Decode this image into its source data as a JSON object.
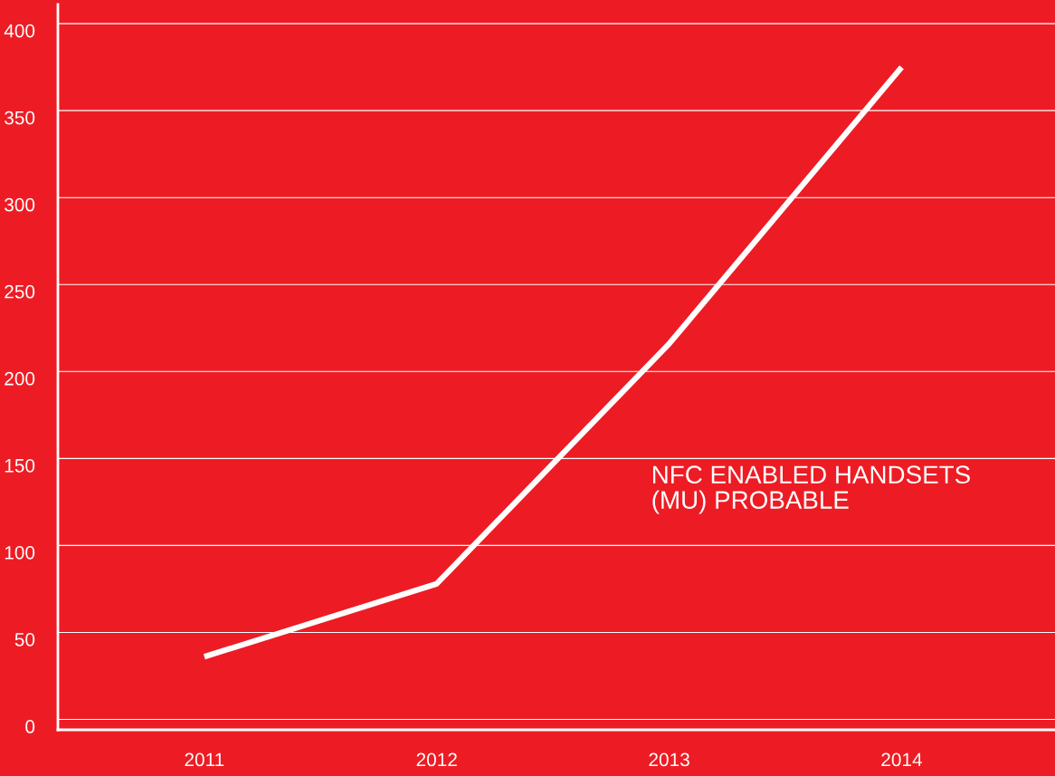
{
  "chart_data": {
    "type": "line",
    "categories": [
      "2011",
      "2012",
      "2013",
      "2014"
    ],
    "series": [
      {
        "color": "#ffffff",
        "values": [
          36,
          78,
          216,
          375
        ]
      }
    ],
    "ylim": [
      -6,
      411
    ],
    "yticks": [
      0,
      50,
      100,
      150,
      200,
      250,
      300,
      350,
      400
    ],
    "grid": "y",
    "marker": "none",
    "line_style": "solid",
    "annotations": [
      "NFC ENABLED HANDSETS\n(MU) PROBABLE"
    ]
  }
}
